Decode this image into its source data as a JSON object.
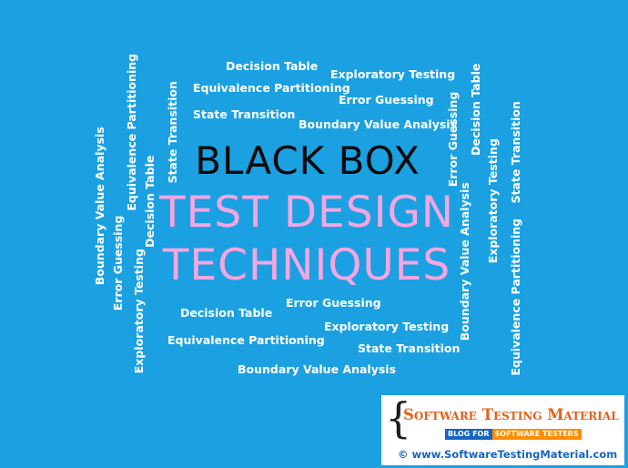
{
  "title": {
    "line1": "BLACK BOX",
    "line2": "TEST DESIGN",
    "line3": "TECHNIQUES"
  },
  "cloud": {
    "top": {
      "decision_table": "Decision Table",
      "exploratory_testing": "Exploratory Testing",
      "equivalence_partitioning": "Equivalence Partitioning",
      "error_guessing": "Error Guessing",
      "state_transition": "State Transition",
      "boundary_value_analysis": "Boundary Value Analysis"
    },
    "bottom": {
      "error_guessing": "Error Guessing",
      "decision_table": "Decision Table",
      "exploratory_testing": "Exploratory Testing",
      "equivalence_partitioning": "Equivalence Partitioning",
      "state_transition": "State Transition",
      "boundary_value_analysis": "Boundary Value Analysis"
    },
    "left_vertical": {
      "equivalence_partitioning": "Equivalence Partitioning",
      "state_transition": "State Transition",
      "boundary_value_analysis": "Boundary Value Analysis",
      "decision_table": "Decision Table",
      "error_guessing": "Error Guessing",
      "exploratory_testing": "Exploratory Testing"
    },
    "right_vertical": {
      "error_guessing": "Error Guessing",
      "decision_table": "Decision Table",
      "exploratory_testing": "Exploratory Testing",
      "state_transition": "State Transition",
      "boundary_value_analysis": "Boundary Value Analysis",
      "equivalence_partitioning": "Equivalence Partitioning"
    }
  },
  "logo": {
    "brace": "{",
    "name": "Software Testing Material",
    "tag_left": "BLOG FOR",
    "tag_right": "SOFTWARE TESTERS",
    "url": "© www.SoftwareTestingMaterial.com"
  },
  "colors": {
    "background": "#1ba1e2",
    "title_dark": "#0a0a0a",
    "title_pink": "#f5a6e0",
    "cloud_text": "#ffffff",
    "logo_orange": "#e2601a",
    "logo_blue": "#1565c0"
  }
}
